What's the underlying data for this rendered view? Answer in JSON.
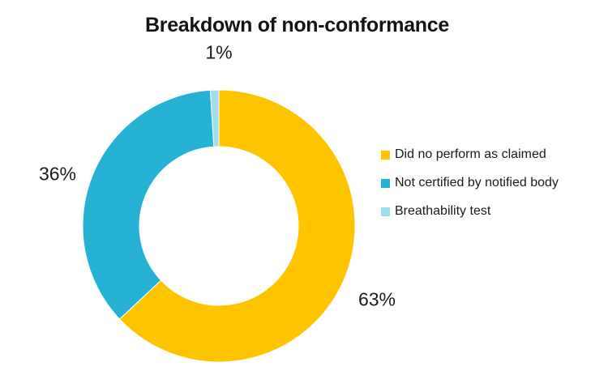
{
  "chart_data": {
    "type": "pie",
    "subtype": "donut",
    "title": "Breakdown of non-conformance",
    "categories": [
      "Did no perform as claimed",
      "Not certified by notified body",
      "Breathability test"
    ],
    "values": [
      63,
      36,
      1
    ],
    "unit": "%",
    "data_labels": [
      "63%",
      "36%",
      "1%"
    ],
    "colors": [
      "#FFC400",
      "#26B2D5",
      "#9FDCEC"
    ],
    "start_angle_deg": 0,
    "direction": "clockwise",
    "legend_position": "right",
    "grid": "off",
    "background": "#FFFFFF",
    "text_color": "#1A1A1A"
  }
}
